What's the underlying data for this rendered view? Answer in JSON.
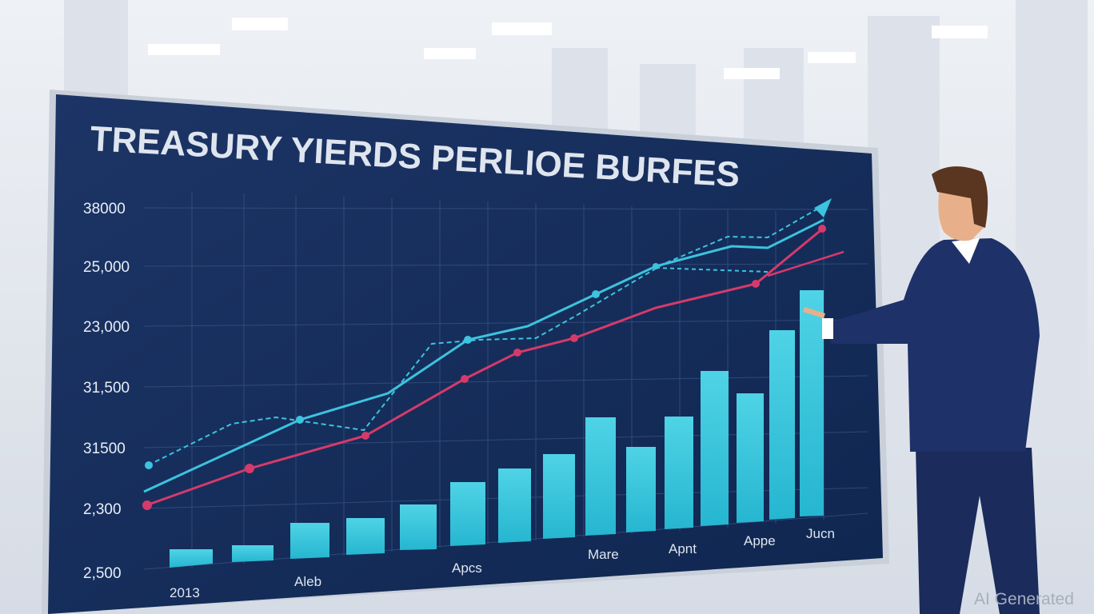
{
  "screen": {
    "title": "TREASURY YIERDS PERLIOE BURFES",
    "y_labels": [
      "38000",
      "25,000",
      "23,000",
      "31,500",
      "31500",
      "2,300",
      "2,500"
    ],
    "x_labels": [
      "2013",
      "Aleb",
      "Apcs",
      "Mare",
      "Apnt",
      "Appe",
      "Jucn"
    ]
  },
  "watermark": "AI Generated"
}
